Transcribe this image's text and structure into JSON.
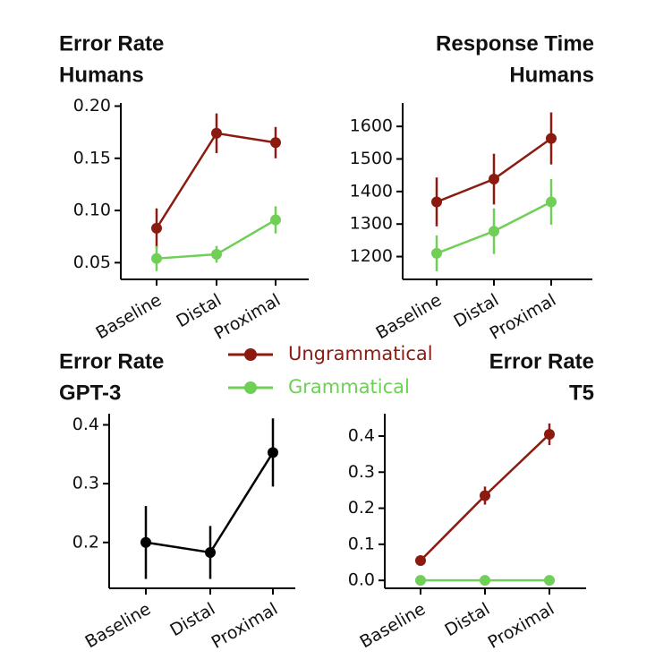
{
  "chart_data": [
    {
      "type": "line",
      "title": [
        "Error Rate",
        "Humans"
      ],
      "categories": [
        "Baseline",
        "Distal",
        "Proximal"
      ],
      "series": [
        {
          "name": "Ungrammatical",
          "color": "#8b1a10",
          "values": [
            0.083,
            0.174,
            0.165
          ],
          "errors": [
            0.019,
            0.019,
            0.015
          ]
        },
        {
          "name": "Grammatical",
          "color": "#6fcf57",
          "values": [
            0.054,
            0.058,
            0.091
          ],
          "errors": [
            0.012,
            0.008,
            0.013
          ]
        }
      ],
      "ylim": [
        0.034,
        0.203
      ],
      "yticks": [
        {
          "value": 0.05,
          "label": "0.05"
        },
        {
          "value": 0.1,
          "label": "0.10"
        },
        0.15,
        {
          "value": 0.2,
          "label": "0.20"
        }
      ]
    },
    {
      "type": "line",
      "title": [
        "Response Time",
        "Humans"
      ],
      "categories": [
        "Baseline",
        "Distal",
        "Proximal"
      ],
      "series": [
        {
          "name": "Ungrammatical",
          "color": "#8b1a10",
          "values": [
            1368,
            1438,
            1563
          ],
          "errors": [
            75,
            78,
            80
          ]
        },
        {
          "name": "Grammatical",
          "color": "#6fcf57",
          "values": [
            1210,
            1278,
            1368
          ],
          "errors": [
            55,
            70,
            70
          ]
        }
      ],
      "ylim": [
        1130,
        1672
      ],
      "yticks": [
        1200,
        1300,
        1400,
        1500,
        1600
      ]
    },
    {
      "type": "line",
      "title": [
        "Error Rate",
        "GPT-3"
      ],
      "categories": [
        "Baseline",
        "Distal",
        "Proximal"
      ],
      "series": [
        {
          "color": "#000000",
          "values": [
            0.2,
            0.183,
            0.353
          ],
          "errors": [
            0.062,
            0.045,
            0.058
          ]
        }
      ],
      "ylim": [
        0.122,
        0.419
      ],
      "yticks": [
        0.2,
        0.3,
        0.4
      ]
    },
    {
      "type": "line",
      "title": [
        "Error Rate",
        "T5"
      ],
      "categories": [
        "Baseline",
        "Distal",
        "Proximal"
      ],
      "series": [
        {
          "name": "Ungrammatical",
          "color": "#8b1a10",
          "values": [
            0.055,
            0.235,
            0.405
          ],
          "errors": [
            0.012,
            0.025,
            0.03
          ]
        },
        {
          "name": "Grammatical",
          "color": "#6fcf57",
          "values": [
            0,
            0,
            0
          ],
          "errors": [
            0.003,
            0.003,
            0.003
          ]
        }
      ],
      "ylim": [
        -0.022,
        0.462
      ],
      "yticks": [
        {
          "value": 0,
          "label": "0.0"
        },
        0.1,
        0.2,
        0.3,
        0.4
      ]
    }
  ]
}
